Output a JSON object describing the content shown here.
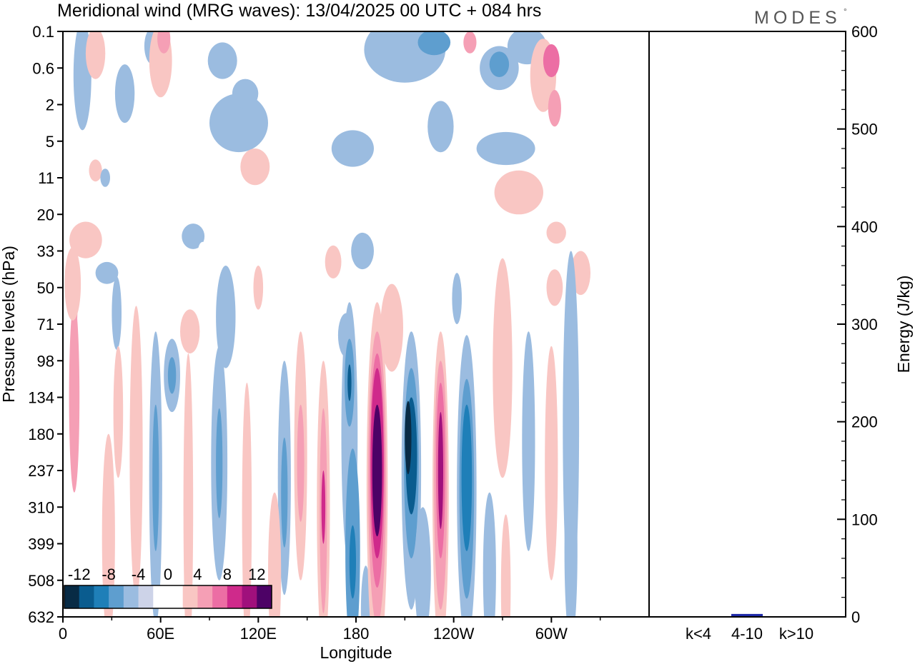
{
  "title": "Meridional wind (MRG waves):  13/04/2025  00 UTC  + 084 hrs",
  "logo": "MODES",
  "logo_mark": "°",
  "chart_data": [
    {
      "type": "heatmap",
      "xlabel": "Longitude",
      "ylabel": "Pressure levels (hPa)",
      "x_ticks": [
        "0",
        "60E",
        "120E",
        "180",
        "120W",
        "60W"
      ],
      "y_ticks": [
        "0.1",
        "0.6",
        "2",
        "5",
        "11",
        "20",
        "33",
        "50",
        "71",
        "98",
        "134",
        "180",
        "237",
        "310",
        "399",
        "508",
        "632"
      ],
      "colorbar": {
        "levels": [
          -12,
          -10,
          -8,
          -6,
          -4,
          -2,
          0,
          2,
          4,
          6,
          8,
          10,
          12,
          14
        ],
        "tick_labels": [
          "-12",
          "-8",
          "-4",
          "0",
          "4",
          "8",
          "12"
        ],
        "colors": [
          "#082b45",
          "#0a5c8f",
          "#1f7fb8",
          "#5e9ecf",
          "#9bbce0",
          "#cdd3e8",
          "#ffffff",
          "#ffffff",
          "#f9c6c3",
          "#f59fb5",
          "#ec6ea4",
          "#cf2a8b",
          "#a0107c",
          "#4d0266"
        ]
      },
      "blobs": [
        {
          "lon": 7,
          "lev": 10.0,
          "rx": 3.2,
          "ry": 2.6,
          "v": 7
        },
        {
          "lon": 7,
          "lev": 7.5,
          "rx": 2.0,
          "ry": 0.8,
          "v": 6
        },
        {
          "lon": 12,
          "lev": 1.2,
          "rx": 5.5,
          "ry": 1.5,
          "v": -3
        },
        {
          "lon": 20,
          "lev": 0.6,
          "rx": 6,
          "ry": 0.7,
          "v": 4
        },
        {
          "lon": 38,
          "lev": 1.7,
          "rx": 6,
          "ry": 0.8,
          "v": -3
        },
        {
          "lon": 55,
          "lev": 0.4,
          "rx": 5,
          "ry": 0.5,
          "v": -3
        },
        {
          "lon": 60,
          "lev": 0.8,
          "rx": 7,
          "ry": 1.0,
          "v": 5
        },
        {
          "lon": 62,
          "lev": 0.2,
          "rx": 4,
          "ry": 0.4,
          "v": 7
        },
        {
          "lon": 38,
          "lev": 3.6,
          "rx": 18,
          "ry": 0.6,
          "v": 3
        },
        {
          "lon": 20,
          "lev": 3.8,
          "rx": 4,
          "ry": 0.3,
          "v": 4
        },
        {
          "lon": 108,
          "lev": 2.5,
          "rx": 18,
          "ry": 0.8,
          "v": -3
        },
        {
          "lon": 112,
          "lev": 1.7,
          "rx": 8,
          "ry": 0.4,
          "v": -4
        },
        {
          "lon": 98,
          "lev": 0.8,
          "rx": 9,
          "ry": 0.5,
          "v": -3
        },
        {
          "lon": 130,
          "lev": 1.2,
          "rx": 12,
          "ry": 0.5,
          "v": 3
        },
        {
          "lon": 165,
          "lev": 1.0,
          "rx": 9,
          "ry": 0.4,
          "v": 3
        },
        {
          "lon": 118,
          "lev": 3.7,
          "rx": 9,
          "ry": 0.5,
          "v": 4
        },
        {
          "lon": 210,
          "lev": 0.5,
          "rx": 25,
          "ry": 0.9,
          "v": -3
        },
        {
          "lon": 228,
          "lev": 0.3,
          "rx": 10,
          "ry": 0.35,
          "v": -6
        },
        {
          "lon": 235,
          "lev": 1.5,
          "rx": 5,
          "ry": 0.5,
          "v": 3
        },
        {
          "lon": 250,
          "lev": 0.3,
          "rx": 4,
          "ry": 0.3,
          "v": 6
        },
        {
          "lon": 268,
          "lev": 1.0,
          "rx": 12,
          "ry": 0.6,
          "v": -3
        },
        {
          "lon": 268,
          "lev": 0.9,
          "rx": 6,
          "ry": 0.35,
          "v": -5
        },
        {
          "lon": 285,
          "lev": 0.4,
          "rx": 12,
          "ry": 0.5,
          "v": -4
        },
        {
          "lon": 295,
          "lev": 1.2,
          "rx": 8,
          "ry": 1.0,
          "v": 5
        },
        {
          "lon": 300,
          "lev": 0.8,
          "rx": 5,
          "ry": 0.45,
          "v": 8
        },
        {
          "lon": 302,
          "lev": 2.1,
          "rx": 4,
          "ry": 0.5,
          "v": 7
        },
        {
          "lon": 178,
          "lev": 3.2,
          "rx": 13,
          "ry": 0.5,
          "v": -3
        },
        {
          "lon": 232,
          "lev": 2.6,
          "rx": 8,
          "ry": 0.7,
          "v": -3
        },
        {
          "lon": 254,
          "lev": 2.2,
          "rx": 5,
          "ry": 0.6,
          "v": 3
        },
        {
          "lon": 272,
          "lev": 3.2,
          "rx": 18,
          "ry": 0.45,
          "v": -3
        },
        {
          "lon": 280,
          "lev": 4.4,
          "rx": 15,
          "ry": 0.6,
          "v": 4
        },
        {
          "lon": 26,
          "lev": 4.0,
          "rx": 3,
          "ry": 0.25,
          "v": -3
        },
        {
          "lon": 80,
          "lev": 5.6,
          "rx": 7,
          "ry": 0.35,
          "v": -3
        },
        {
          "lon": 14,
          "lev": 5.7,
          "rx": 10,
          "ry": 0.5,
          "v": 4
        },
        {
          "lon": 86,
          "lev": 6.0,
          "rx": 3,
          "ry": 0.25,
          "v": 3
        },
        {
          "lon": 184,
          "lev": 6.0,
          "rx": 7,
          "ry": 0.5,
          "v": -3
        },
        {
          "lon": 166,
          "lev": 6.3,
          "rx": 5,
          "ry": 0.45,
          "v": 4
        },
        {
          "lon": 303,
          "lev": 5.5,
          "rx": 6,
          "ry": 0.3,
          "v": 4
        },
        {
          "lon": 27,
          "lev": 6.6,
          "rx": 7,
          "ry": 0.3,
          "v": -3
        },
        {
          "lon": 6,
          "lev": 6.9,
          "rx": 5,
          "ry": 1.0,
          "v": 4
        },
        {
          "lon": 33,
          "lev": 7.7,
          "rx": 3,
          "ry": 1.0,
          "v": -3
        },
        {
          "lon": 100,
          "lev": 7.8,
          "rx": 6,
          "ry": 1.4,
          "v": -3
        },
        {
          "lon": 78,
          "lev": 8.2,
          "rx": 6,
          "ry": 0.6,
          "v": 4
        },
        {
          "lon": 120,
          "lev": 7.0,
          "rx": 3,
          "ry": 0.6,
          "v": 4
        },
        {
          "lon": 174,
          "lev": 8.3,
          "rx": 5,
          "ry": 0.6,
          "v": -3
        },
        {
          "lon": 202,
          "lev": 8.1,
          "rx": 7,
          "ry": 1.2,
          "v": 4
        },
        {
          "lon": 270,
          "lev": 9.2,
          "rx": 6,
          "ry": 3.0,
          "v": 4
        },
        {
          "lon": 242,
          "lev": 7.3,
          "rx": 3,
          "ry": 0.7,
          "v": -3
        },
        {
          "lon": 302,
          "lev": 7.0,
          "rx": 5,
          "ry": 0.5,
          "v": 4
        },
        {
          "lon": 318,
          "lev": 6.6,
          "rx": 6,
          "ry": 0.6,
          "v": 4
        },
        {
          "lon": 312,
          "lev": 10.8,
          "rx": 5,
          "ry": 4.8,
          "v": -3
        },
        {
          "lon": 286,
          "lev": 11.2,
          "rx": 4,
          "ry": 3.0,
          "v": -3
        },
        {
          "lon": 300,
          "lev": 11.8,
          "rx": 4,
          "ry": 3.2,
          "v": 4
        },
        {
          "lon": 45,
          "lev": 11.5,
          "rx": 4,
          "ry": 4.0,
          "v": 4
        },
        {
          "lon": 34,
          "lev": 10.4,
          "rx": 3,
          "ry": 1.8,
          "v": 4
        },
        {
          "lon": 57,
          "lev": 12.2,
          "rx": 4,
          "ry": 4.0,
          "v": -3
        },
        {
          "lon": 57,
          "lev": 12.2,
          "rx": 2,
          "ry": 2.0,
          "v": -5
        },
        {
          "lon": 67,
          "lev": 9.4,
          "rx": 5,
          "ry": 1.0,
          "v": -3
        },
        {
          "lon": 67,
          "lev": 9.4,
          "rx": 2.5,
          "ry": 0.5,
          "v": -5
        },
        {
          "lon": 77,
          "lev": 13.0,
          "rx": 3,
          "ry": 4.2,
          "v": 4
        },
        {
          "lon": 96,
          "lev": 11.8,
          "rx": 5,
          "ry": 3.2,
          "v": -3
        },
        {
          "lon": 96,
          "lev": 11.8,
          "rx": 2,
          "ry": 1.5,
          "v": -5
        },
        {
          "lon": 113,
          "lev": 13.2,
          "rx": 3,
          "ry": 3.6,
          "v": 4
        },
        {
          "lon": 136,
          "lev": 12.2,
          "rx": 4,
          "ry": 3.2,
          "v": -3
        },
        {
          "lon": 136,
          "lev": 12.6,
          "rx": 2,
          "ry": 1.5,
          "v": -5
        },
        {
          "lon": 146,
          "lev": 11.6,
          "rx": 4,
          "ry": 3.4,
          "v": 4
        },
        {
          "lon": 146,
          "lev": 11.8,
          "rx": 2.2,
          "ry": 1.6,
          "v": 6
        },
        {
          "lon": 160,
          "lev": 13.0,
          "rx": 4,
          "ry": 4.0,
          "v": 4
        },
        {
          "lon": 160,
          "lev": 13.1,
          "rx": 2.3,
          "ry": 2.8,
          "v": 6
        },
        {
          "lon": 160,
          "lev": 13.0,
          "rx": 1.2,
          "ry": 1.0,
          "v": 10
        },
        {
          "lon": 176,
          "lev": 11.0,
          "rx": 5,
          "ry": 3.6,
          "v": -3
        },
        {
          "lon": 176,
          "lev": 9.6,
          "rx": 3,
          "ry": 1.2,
          "v": -6
        },
        {
          "lon": 176,
          "lev": 9.6,
          "rx": 1.2,
          "ry": 0.5,
          "v": -10
        },
        {
          "lon": 178,
          "lev": 14.2,
          "rx": 4.5,
          "ry": 2.8,
          "v": -5
        },
        {
          "lon": 178,
          "lev": 14.5,
          "rx": 2,
          "ry": 1.0,
          "v": -8
        },
        {
          "lon": 186,
          "lev": 15.8,
          "rx": 3,
          "ry": 1.2,
          "v": -4
        },
        {
          "lon": 193,
          "lev": 12.4,
          "rx": 6.5,
          "ry": 5.0,
          "v": 4
        },
        {
          "lon": 193,
          "lev": 12.2,
          "rx": 5.5,
          "ry": 4.0,
          "v": 6
        },
        {
          "lon": 193,
          "lev": 12.0,
          "rx": 4.5,
          "ry": 3.2,
          "v": 9
        },
        {
          "lon": 193,
          "lev": 11.8,
          "rx": 4.0,
          "ry": 2.6,
          "v": 11
        },
        {
          "lon": 193,
          "lev": 12.0,
          "rx": 3.0,
          "ry": 1.8,
          "v": 14
        },
        {
          "lon": 214,
          "lev": 12.0,
          "rx": 6,
          "ry": 3.8,
          "v": -3
        },
        {
          "lon": 214,
          "lev": 11.8,
          "rx": 4.5,
          "ry": 2.6,
          "v": -6
        },
        {
          "lon": 214,
          "lev": 11.6,
          "rx": 3.5,
          "ry": 1.6,
          "v": -9
        },
        {
          "lon": 212,
          "lev": 11.1,
          "rx": 2,
          "ry": 1.0,
          "v": -12
        },
        {
          "lon": 221,
          "lev": 14.8,
          "rx": 5,
          "ry": 1.8,
          "v": -3
        },
        {
          "lon": 232,
          "lev": 12.6,
          "rx": 5,
          "ry": 4.4,
          "v": 4
        },
        {
          "lon": 232,
          "lev": 12.4,
          "rx": 4,
          "ry": 3.4,
          "v": 6
        },
        {
          "lon": 232,
          "lev": 12.0,
          "rx": 2.8,
          "ry": 2.4,
          "v": 9
        },
        {
          "lon": 232,
          "lev": 12.0,
          "rx": 1.6,
          "ry": 1.6,
          "v": 12
        },
        {
          "lon": 248,
          "lev": 12.5,
          "rx": 6,
          "ry": 4.2,
          "v": -3
        },
        {
          "lon": 248,
          "lev": 12.5,
          "rx": 4.5,
          "ry": 3.0,
          "v": -5
        },
        {
          "lon": 248,
          "lev": 12.2,
          "rx": 3.2,
          "ry": 2.0,
          "v": -8
        },
        {
          "lon": 262,
          "lev": 14.8,
          "rx": 4,
          "ry": 2.2,
          "v": -3
        },
        {
          "lon": 272,
          "lev": 15.2,
          "rx": 3,
          "ry": 2.0,
          "v": 4
        },
        {
          "lon": 28,
          "lev": 13.8,
          "rx": 4,
          "ry": 2.8,
          "v": 4
        },
        {
          "lon": 130,
          "lev": 14.8,
          "rx": 4,
          "ry": 2.2,
          "v": 4
        },
        {
          "lon": 312,
          "lev": 14.2,
          "rx": 4,
          "ry": 2.5,
          "v": -3
        }
      ]
    },
    {
      "type": "bar",
      "categories": [
        "k<4",
        "4-10",
        "k>10"
      ],
      "values": [
        0.5,
        3,
        0.3
      ],
      "ylabel": "Energy (J/kg)",
      "ylim": [
        0,
        600
      ],
      "y_ticks": [
        "0",
        "100",
        "200",
        "300",
        "400",
        "500",
        "600"
      ],
      "colors": [
        "#1f2aa8",
        "#1f2aa8",
        "#1f2aa8"
      ]
    }
  ]
}
